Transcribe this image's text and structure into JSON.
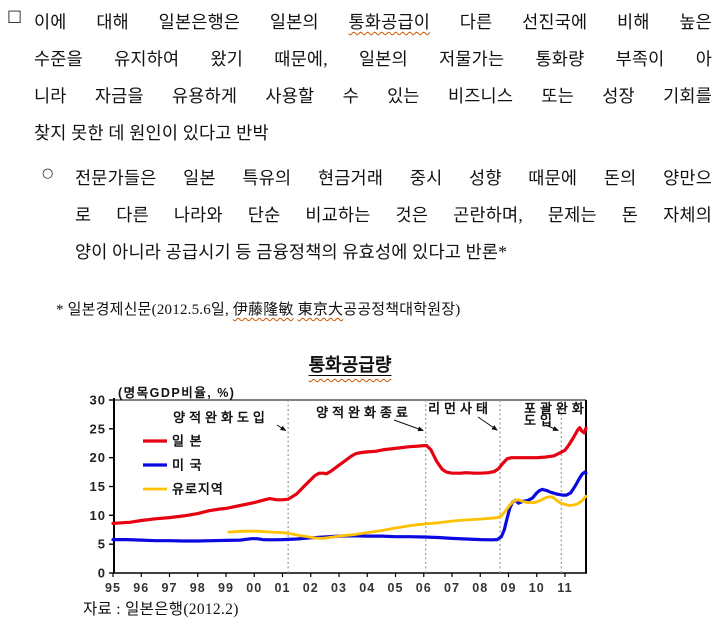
{
  "document": {
    "para1": {
      "bullet": "□",
      "l1_pre": "이에 대해 일본은행은 일본의 ",
      "l1_wavy": "통화공급이",
      "l1_post": " 다른 선진국에 비해 높은",
      "l2": "수준을 유지하여 왔기 때문에, 일본의 저물가는 통화량 부족이 아",
      "l3": "니라 자금을 유용하게 사용할 수 있는 비즈니스 또는 성장 기회를",
      "l4": "찾지 못한 데 원인이 있다고 반박"
    },
    "para2": {
      "bullet": "○",
      "l1": "전문가들은 일본 특유의 현금거래 중시 성향 때문에 돈의 양만으",
      "l2": "로 다른 나라와 단순 비교하는 것은 곤란하며, 문제는 돈 자체의",
      "l3": "양이 아니라 공급시기 등 금융정책의 유효성에 있다고 반론*"
    },
    "footnote": {
      "pre": "* 일본경제신문(2012.5.6일, ",
      "w1": "伊藤隆敏",
      "sep": " ",
      "w2": "東京大",
      "post": "공공정책대학원장)"
    },
    "source": "자료 : 일본은행(2012.2)"
  },
  "chart_data": {
    "type": "line",
    "title": "통화공급량",
    "unit_label": "(명목GDP비율, %)",
    "xlabel": "",
    "ylabel": "",
    "ylim": [
      0,
      30
    ],
    "yticks": [
      0,
      5,
      10,
      15,
      20,
      25,
      30
    ],
    "xtick_labels": [
      "95",
      "96",
      "97",
      "98",
      "99",
      "00",
      "01",
      "02",
      "03",
      "04",
      "05",
      "06",
      "07",
      "08",
      "09",
      "10",
      "11"
    ],
    "x_range": [
      1995,
      2011.74
    ],
    "grid": false,
    "legend_position": "top-left-inside",
    "event_lines": [
      {
        "x": 2001.2,
        "label": "양적완화도입"
      },
      {
        "x": 2006.07,
        "label": "양적완화종료"
      },
      {
        "x": 2008.7,
        "label": "리먼사태"
      },
      {
        "x": 2010.87,
        "label": "포괄완화 도입"
      }
    ],
    "series": [
      {
        "name": "일 본",
        "color": "#e60012",
        "width": 3.2,
        "points": [
          [
            1995.0,
            8.6
          ],
          [
            1995.3,
            8.7
          ],
          [
            1995.6,
            8.8
          ],
          [
            1996.0,
            9.1
          ],
          [
            1996.5,
            9.4
          ],
          [
            1997.0,
            9.6
          ],
          [
            1997.5,
            9.9
          ],
          [
            1998.0,
            10.3
          ],
          [
            1998.4,
            10.8
          ],
          [
            1998.8,
            11.1
          ],
          [
            1999.0,
            11.2
          ],
          [
            1999.5,
            11.7
          ],
          [
            2000.0,
            12.2
          ],
          [
            2000.3,
            12.6
          ],
          [
            2000.55,
            12.9
          ],
          [
            2000.8,
            12.7
          ],
          [
            2001.0,
            12.7
          ],
          [
            2001.2,
            12.8
          ],
          [
            2001.5,
            13.7
          ],
          [
            2001.8,
            15.2
          ],
          [
            2002.0,
            16.2
          ],
          [
            2002.15,
            16.9
          ],
          [
            2002.3,
            17.3
          ],
          [
            2002.45,
            17.3
          ],
          [
            2002.55,
            17.2
          ],
          [
            2002.7,
            17.6
          ],
          [
            2003.0,
            18.7
          ],
          [
            2003.2,
            19.4
          ],
          [
            2003.45,
            20.3
          ],
          [
            2003.6,
            20.7
          ],
          [
            2003.8,
            20.9
          ],
          [
            2004.0,
            21.0
          ],
          [
            2004.3,
            21.1
          ],
          [
            2004.6,
            21.4
          ],
          [
            2005.0,
            21.6
          ],
          [
            2005.5,
            21.9
          ],
          [
            2005.8,
            22.0
          ],
          [
            2006.0,
            22.1
          ],
          [
            2006.1,
            22.1
          ],
          [
            2006.25,
            21.4
          ],
          [
            2006.45,
            19.4
          ],
          [
            2006.65,
            18.0
          ],
          [
            2006.8,
            17.5
          ],
          [
            2007.0,
            17.3
          ],
          [
            2007.3,
            17.3
          ],
          [
            2007.5,
            17.4
          ],
          [
            2007.8,
            17.3
          ],
          [
            2008.0,
            17.3
          ],
          [
            2008.3,
            17.4
          ],
          [
            2008.5,
            17.6
          ],
          [
            2008.65,
            18.1
          ],
          [
            2008.8,
            19.0
          ],
          [
            2008.95,
            19.8
          ],
          [
            2009.1,
            20.0
          ],
          [
            2009.4,
            20.0
          ],
          [
            2009.7,
            20.0
          ],
          [
            2010.0,
            20.0
          ],
          [
            2010.3,
            20.1
          ],
          [
            2010.6,
            20.3
          ],
          [
            2010.85,
            20.9
          ],
          [
            2011.0,
            21.3
          ],
          [
            2011.15,
            22.3
          ],
          [
            2011.3,
            23.5
          ],
          [
            2011.45,
            24.8
          ],
          [
            2011.52,
            25.2
          ],
          [
            2011.6,
            24.6
          ],
          [
            2011.68,
            24.3
          ],
          [
            2011.74,
            25.1
          ]
        ]
      },
      {
        "name": "미 국",
        "color": "#0a0ae0",
        "width": 3.2,
        "points": [
          [
            1995.0,
            5.8
          ],
          [
            1995.5,
            5.8
          ],
          [
            1996.0,
            5.7
          ],
          [
            1996.5,
            5.6
          ],
          [
            1997.0,
            5.6
          ],
          [
            1997.5,
            5.55
          ],
          [
            1998.0,
            5.55
          ],
          [
            1998.5,
            5.6
          ],
          [
            1999.0,
            5.65
          ],
          [
            1999.5,
            5.7
          ],
          [
            1999.9,
            5.95
          ],
          [
            2000.1,
            5.95
          ],
          [
            2000.3,
            5.8
          ],
          [
            2000.6,
            5.75
          ],
          [
            2001.0,
            5.8
          ],
          [
            2001.5,
            5.9
          ],
          [
            2002.0,
            6.1
          ],
          [
            2002.5,
            6.25
          ],
          [
            2003.0,
            6.4
          ],
          [
            2003.5,
            6.45
          ],
          [
            2004.0,
            6.4
          ],
          [
            2004.5,
            6.4
          ],
          [
            2005.0,
            6.3
          ],
          [
            2005.5,
            6.3
          ],
          [
            2006.0,
            6.25
          ],
          [
            2006.5,
            6.15
          ],
          [
            2007.0,
            6.0
          ],
          [
            2007.5,
            5.9
          ],
          [
            2008.0,
            5.8
          ],
          [
            2008.4,
            5.75
          ],
          [
            2008.6,
            5.8
          ],
          [
            2008.75,
            6.3
          ],
          [
            2008.85,
            7.5
          ],
          [
            2008.95,
            9.5
          ],
          [
            2009.05,
            11.3
          ],
          [
            2009.15,
            12.3
          ],
          [
            2009.25,
            12.6
          ],
          [
            2009.35,
            12.1
          ],
          [
            2009.5,
            12.4
          ],
          [
            2009.7,
            12.6
          ],
          [
            2009.85,
            13.0
          ],
          [
            2010.0,
            13.9
          ],
          [
            2010.1,
            14.3
          ],
          [
            2010.2,
            14.5
          ],
          [
            2010.35,
            14.3
          ],
          [
            2010.5,
            14.0
          ],
          [
            2010.7,
            13.7
          ],
          [
            2010.9,
            13.5
          ],
          [
            2011.05,
            13.5
          ],
          [
            2011.2,
            13.9
          ],
          [
            2011.35,
            15.0
          ],
          [
            2011.5,
            16.3
          ],
          [
            2011.6,
            17.1
          ],
          [
            2011.7,
            17.5
          ],
          [
            2011.74,
            17.3
          ]
        ]
      },
      {
        "name": "유로지역",
        "color": "#ffc000",
        "width": 2.8,
        "points": [
          [
            1999.1,
            7.1
          ],
          [
            1999.4,
            7.2
          ],
          [
            1999.7,
            7.25
          ],
          [
            2000.0,
            7.25
          ],
          [
            2000.3,
            7.2
          ],
          [
            2000.6,
            7.1
          ],
          [
            2001.0,
            7.0
          ],
          [
            2001.3,
            6.8
          ],
          [
            2001.6,
            6.5
          ],
          [
            2002.0,
            6.2
          ],
          [
            2002.2,
            6.05
          ],
          [
            2002.4,
            6.0
          ],
          [
            2002.6,
            6.1
          ],
          [
            2003.0,
            6.4
          ],
          [
            2003.5,
            6.65
          ],
          [
            2004.0,
            7.0
          ],
          [
            2004.5,
            7.35
          ],
          [
            2005.0,
            7.8
          ],
          [
            2005.5,
            8.2
          ],
          [
            2006.0,
            8.5
          ],
          [
            2006.3,
            8.6
          ],
          [
            2006.6,
            8.75
          ],
          [
            2007.0,
            9.0
          ],
          [
            2007.5,
            9.2
          ],
          [
            2008.0,
            9.35
          ],
          [
            2008.4,
            9.5
          ],
          [
            2008.6,
            9.6
          ],
          [
            2008.75,
            9.9
          ],
          [
            2008.9,
            10.8
          ],
          [
            2009.05,
            11.8
          ],
          [
            2009.2,
            12.5
          ],
          [
            2009.35,
            12.7
          ],
          [
            2009.5,
            12.4
          ],
          [
            2009.7,
            12.2
          ],
          [
            2009.9,
            12.2
          ],
          [
            2010.1,
            12.5
          ],
          [
            2010.25,
            12.9
          ],
          [
            2010.4,
            13.2
          ],
          [
            2010.55,
            13.2
          ],
          [
            2010.7,
            12.6
          ],
          [
            2010.85,
            12.1
          ],
          [
            2011.0,
            11.9
          ],
          [
            2011.15,
            11.7
          ],
          [
            2011.3,
            11.8
          ],
          [
            2011.45,
            12.0
          ],
          [
            2011.6,
            12.5
          ],
          [
            2011.74,
            13.3
          ]
        ]
      }
    ],
    "source": "자료 : 일본은행(2012.2)"
  }
}
